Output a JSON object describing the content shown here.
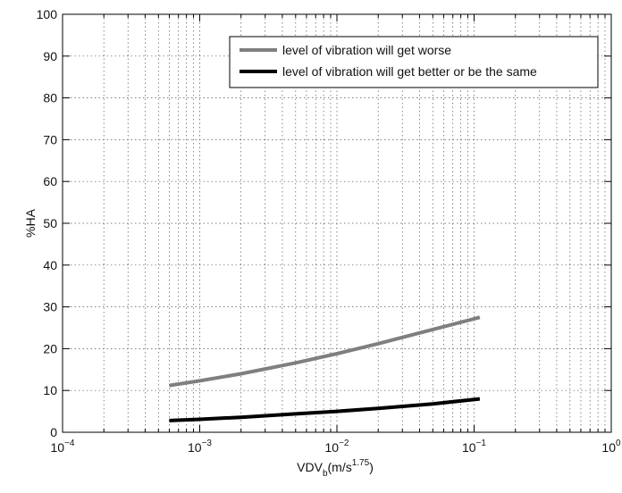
{
  "chart_data": {
    "type": "line",
    "x_scale": "log",
    "xlim": [
      0.0001,
      1
    ],
    "ylim": [
      0,
      100
    ],
    "grid": true,
    "legend_position": "top-right",
    "xlabel": {
      "main": "VDV",
      "sub": "b",
      "unit_prefix": "(m/s",
      "unit_exp": "1.75",
      "unit_suffix": ")"
    },
    "ylabel": "%HA",
    "xticks": [
      {
        "value": 0.0001,
        "base": "10",
        "exp": "−4"
      },
      {
        "value": 0.001,
        "base": "10",
        "exp": "−3"
      },
      {
        "value": 0.01,
        "base": "10",
        "exp": "−2"
      },
      {
        "value": 0.1,
        "base": "10",
        "exp": "−1"
      },
      {
        "value": 1,
        "base": "10",
        "exp": "0"
      }
    ],
    "yticks": [
      0,
      10,
      20,
      30,
      40,
      50,
      60,
      70,
      80,
      90,
      100
    ],
    "series": [
      {
        "name": "level of vibration will get worse",
        "color": "#7f7f7f",
        "x": [
          0.0006,
          0.001,
          0.002,
          0.005,
          0.01,
          0.02,
          0.05,
          0.11
        ],
        "y": [
          11.2,
          12.3,
          14.0,
          16.6,
          18.8,
          21.2,
          24.6,
          27.5
        ]
      },
      {
        "name": "level of vibration will get better or be the same",
        "color": "#000000",
        "x": [
          0.0006,
          0.001,
          0.002,
          0.005,
          0.01,
          0.02,
          0.05,
          0.11
        ],
        "y": [
          2.8,
          3.1,
          3.6,
          4.4,
          5.0,
          5.7,
          6.8,
          8.0
        ]
      }
    ]
  }
}
